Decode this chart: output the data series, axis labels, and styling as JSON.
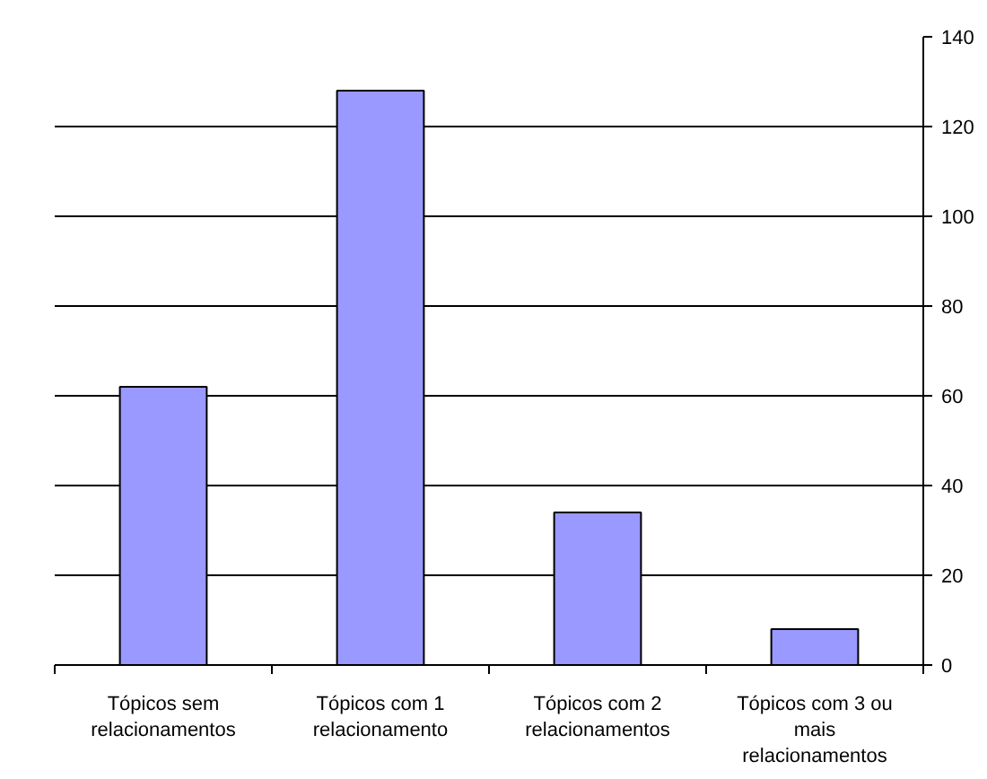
{
  "chart_data": {
    "type": "bar",
    "categories": [
      "Tópicos sem relacionamentos",
      "Tópicos com 1 relacionamento",
      "Tópicos com 2 relacionamentos",
      "Tópicos com 3 ou mais relacionamentos"
    ],
    "values": [
      62,
      128,
      34,
      8
    ],
    "color": "#9999ff",
    "ylim": [
      0,
      140
    ],
    "yticks": [
      0,
      20,
      40,
      60,
      80,
      100,
      120,
      140
    ],
    "grid": "y"
  }
}
